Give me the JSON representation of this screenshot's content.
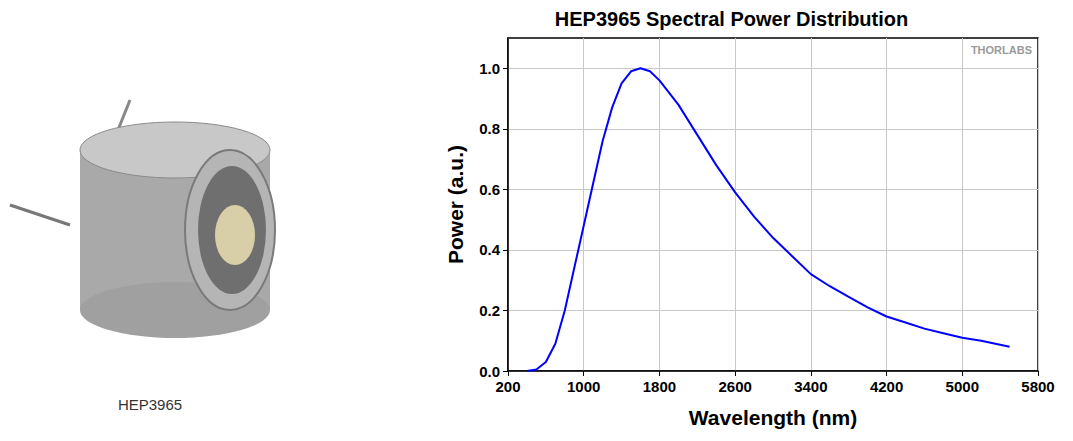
{
  "photo": {
    "label": "HEP3965"
  },
  "chart_data": {
    "type": "line",
    "title": "HEP3965 Spectral Power Distribution",
    "x_label": "Wavelength (nm)",
    "y_label": "Power (a.u.)",
    "annotations": [
      "THORLABS"
    ],
    "grid": true,
    "xlim": [
      200,
      5800
    ],
    "xticks": [
      200,
      1000,
      1800,
      2600,
      3400,
      4200,
      5000,
      5800
    ],
    "ylim": [
      0,
      1.1
    ],
    "yticks": [
      {
        "value": 0,
        "label": "0.0"
      },
      {
        "value": 0.2,
        "label": "0.2"
      },
      {
        "value": 0.4,
        "label": "0.4"
      },
      {
        "value": 0.6,
        "label": "0.6"
      },
      {
        "value": 0.8,
        "label": "0.8"
      },
      {
        "value": 1,
        "label": "1.0"
      }
    ],
    "series": [
      {
        "name": "HEP3965",
        "color": "#0000ff",
        "marker": "none",
        "line_style": "solid",
        "x": [
          400,
          500,
          600,
          700,
          800,
          900,
          1000,
          1100,
          1200,
          1300,
          1400,
          1500,
          1600,
          1700,
          1800,
          2000,
          2200,
          2400,
          2600,
          2800,
          3000,
          3200,
          3400,
          3600,
          3800,
          4000,
          4200,
          4400,
          4600,
          4800,
          5000,
          5200,
          5400,
          5500
        ],
        "values": [
          0,
          0.005,
          0.03,
          0.09,
          0.2,
          0.34,
          0.48,
          0.62,
          0.76,
          0.87,
          0.95,
          0.99,
          1.0,
          0.99,
          0.96,
          0.88,
          0.78,
          0.68,
          0.59,
          0.51,
          0.44,
          0.38,
          0.32,
          0.28,
          0.245,
          0.21,
          0.18,
          0.16,
          0.14,
          0.125,
          0.11,
          0.1,
          0.087,
          0.08
        ]
      }
    ]
  }
}
